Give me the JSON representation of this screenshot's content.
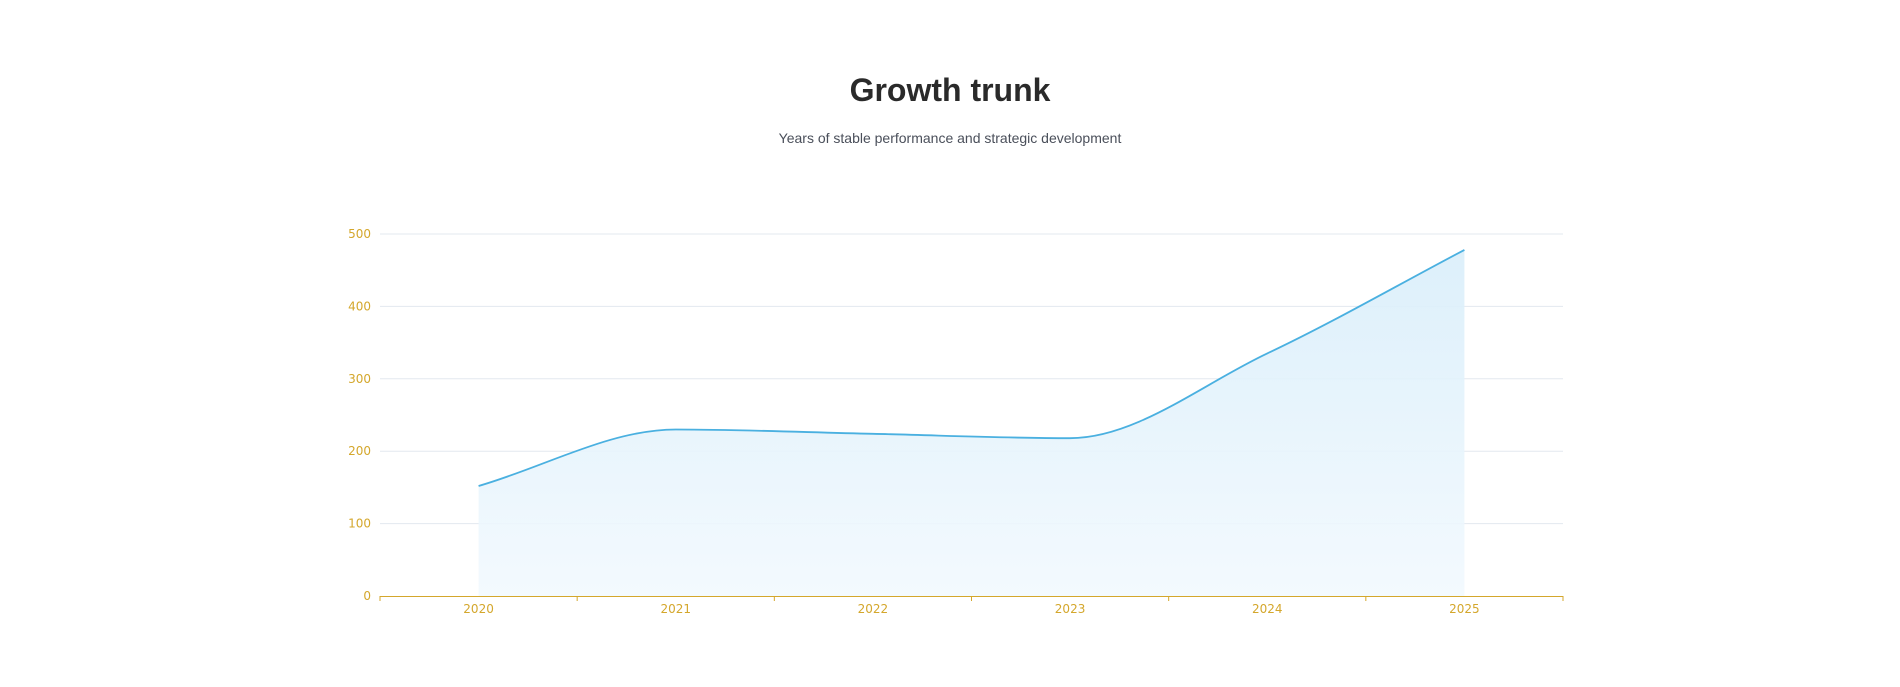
{
  "header": {
    "title": "Growth trunk",
    "subtitle": "Years of stable performance and strategic development"
  },
  "colors": {
    "line": "#4ab0e0",
    "area_top": "#d9eefa",
    "area_bottom": "#f2f9fe",
    "axis": "#d4a72c",
    "tick_text": "#d4a72c",
    "grid": "#e3e8ef"
  },
  "chart_data": {
    "type": "area",
    "title": "Growth trunk",
    "subtitle": "Years of stable performance and strategic development",
    "xlabel": "",
    "ylabel": "",
    "categories": [
      "2020",
      "2021",
      "2022",
      "2023",
      "2024",
      "2025"
    ],
    "series": [
      {
        "values": [
          152,
          230,
          224,
          218,
          335,
          478
        ]
      }
    ],
    "ylim": [
      0,
      500
    ],
    "yticks": [
      0,
      100,
      200,
      300,
      400,
      500
    ],
    "grid": true,
    "smooth": true,
    "legend": "none"
  }
}
